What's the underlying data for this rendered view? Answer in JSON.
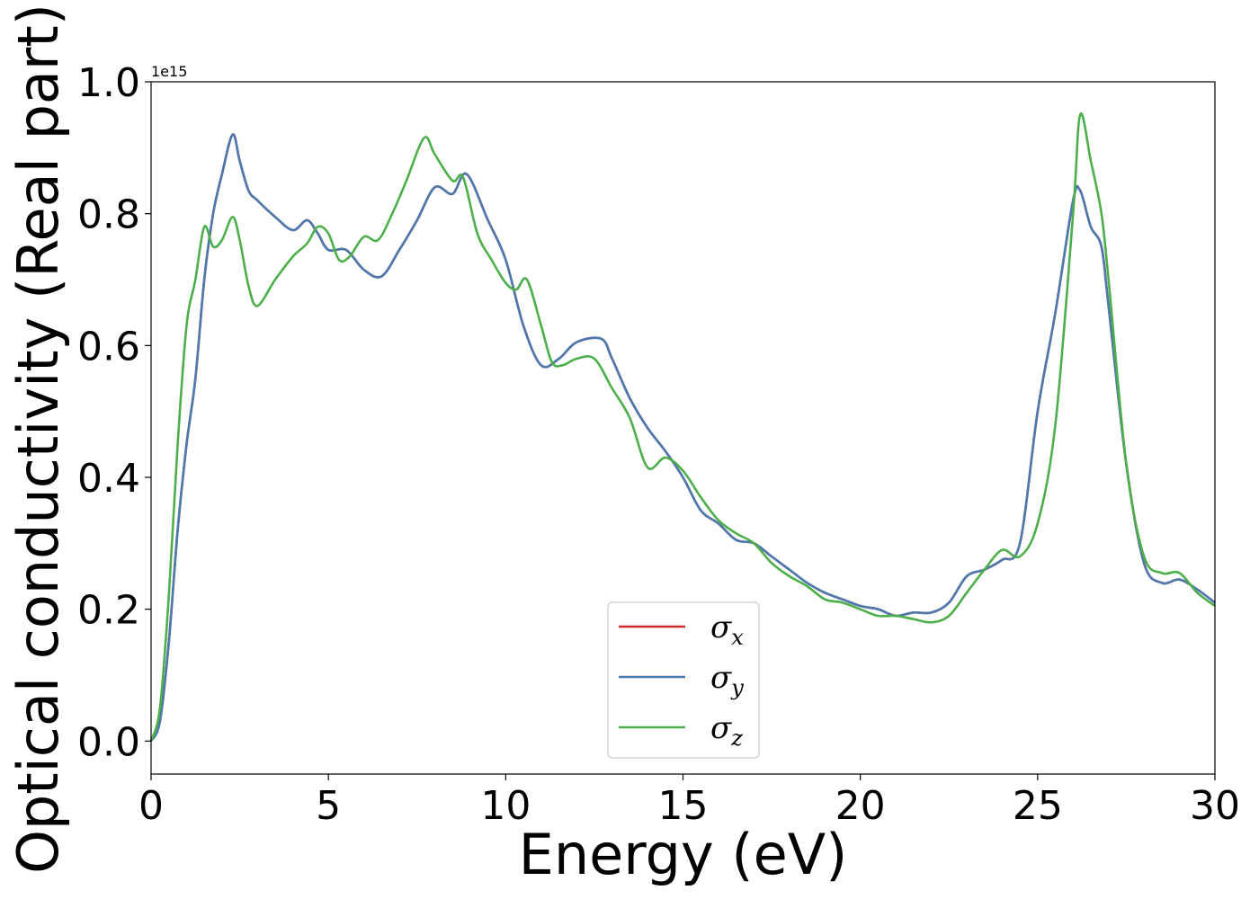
{
  "chart_data": {
    "type": "line",
    "xlabel": "Energy (eV)",
    "ylabel": "Optical conductivity (Real part)",
    "y_offset_text": "1e15",
    "xlim": [
      0,
      30
    ],
    "ylim": [
      -0.05,
      1.0
    ],
    "x_ticks": [
      0,
      5,
      10,
      15,
      20,
      25,
      30
    ],
    "x_tick_labels": [
      "0",
      "5",
      "10",
      "15",
      "20",
      "25",
      "30"
    ],
    "y_ticks": [
      0.0,
      0.2,
      0.4,
      0.6,
      0.8,
      1.0
    ],
    "y_tick_labels": [
      "0.0",
      "0.2",
      "0.4",
      "0.6",
      "0.8",
      "1.0"
    ],
    "grid": false,
    "legend_position": "lower center",
    "colors": {
      "sigma_x": "#d62728",
      "sigma_y": "#4a7ab0",
      "sigma_z": "#4daf4a"
    },
    "series": [
      {
        "name": "σx",
        "symbol": "σ",
        "subscript": "x",
        "color": "#d62728",
        "x": [
          0,
          0.25,
          0.5,
          0.75,
          1.0,
          1.25,
          1.5,
          1.75,
          2.0,
          2.3,
          2.5,
          2.75,
          3.0,
          3.5,
          4.0,
          4.4,
          4.7,
          5.0,
          5.5,
          6.0,
          6.5,
          7.0,
          7.5,
          8.0,
          8.5,
          8.9,
          9.5,
          10.0,
          10.5,
          11.0,
          11.5,
          12.0,
          12.7,
          13.0,
          13.5,
          14.0,
          14.5,
          15.0,
          15.5,
          16.0,
          16.5,
          17.0,
          17.5,
          18.0,
          18.5,
          19.0,
          19.5,
          20.0,
          20.5,
          21.0,
          21.5,
          22.0,
          22.5,
          23.0,
          23.5,
          24.0,
          24.5,
          25.0,
          25.5,
          26.0,
          26.2,
          26.5,
          26.8,
          27.0,
          27.5,
          28.0,
          28.5,
          29.0,
          29.5,
          30.0
        ],
        "values": [
          0.0,
          0.03,
          0.15,
          0.32,
          0.45,
          0.55,
          0.7,
          0.8,
          0.86,
          0.92,
          0.88,
          0.835,
          0.82,
          0.795,
          0.775,
          0.79,
          0.77,
          0.745,
          0.745,
          0.715,
          0.705,
          0.745,
          0.79,
          0.84,
          0.83,
          0.86,
          0.79,
          0.73,
          0.63,
          0.57,
          0.58,
          0.605,
          0.61,
          0.58,
          0.52,
          0.475,
          0.44,
          0.4,
          0.35,
          0.33,
          0.305,
          0.3,
          0.28,
          0.26,
          0.24,
          0.225,
          0.215,
          0.205,
          0.2,
          0.19,
          0.195,
          0.195,
          0.21,
          0.25,
          0.26,
          0.275,
          0.3,
          0.5,
          0.65,
          0.82,
          0.835,
          0.78,
          0.75,
          0.66,
          0.42,
          0.27,
          0.24,
          0.245,
          0.23,
          0.21
        ]
      },
      {
        "name": "σy",
        "symbol": "σ",
        "subscript": "y",
        "color": "#4a7ab0",
        "x": [
          0,
          0.25,
          0.5,
          0.75,
          1.0,
          1.25,
          1.5,
          1.75,
          2.0,
          2.3,
          2.5,
          2.75,
          3.0,
          3.5,
          4.0,
          4.4,
          4.7,
          5.0,
          5.5,
          6.0,
          6.5,
          7.0,
          7.5,
          8.0,
          8.5,
          8.9,
          9.5,
          10.0,
          10.5,
          11.0,
          11.5,
          12.0,
          12.7,
          13.0,
          13.5,
          14.0,
          14.5,
          15.0,
          15.5,
          16.0,
          16.5,
          17.0,
          17.5,
          18.0,
          18.5,
          19.0,
          19.5,
          20.0,
          20.5,
          21.0,
          21.5,
          22.0,
          22.5,
          23.0,
          23.5,
          24.0,
          24.5,
          25.0,
          25.5,
          26.0,
          26.2,
          26.5,
          26.8,
          27.0,
          27.5,
          28.0,
          28.5,
          29.0,
          29.5,
          30.0
        ],
        "values": [
          0.0,
          0.03,
          0.15,
          0.32,
          0.45,
          0.55,
          0.7,
          0.8,
          0.86,
          0.92,
          0.88,
          0.835,
          0.82,
          0.795,
          0.775,
          0.79,
          0.77,
          0.745,
          0.745,
          0.715,
          0.705,
          0.745,
          0.79,
          0.84,
          0.83,
          0.86,
          0.79,
          0.73,
          0.63,
          0.57,
          0.58,
          0.605,
          0.61,
          0.58,
          0.52,
          0.475,
          0.44,
          0.4,
          0.35,
          0.33,
          0.305,
          0.3,
          0.28,
          0.26,
          0.24,
          0.225,
          0.215,
          0.205,
          0.2,
          0.19,
          0.195,
          0.195,
          0.21,
          0.25,
          0.26,
          0.275,
          0.3,
          0.5,
          0.65,
          0.82,
          0.835,
          0.78,
          0.75,
          0.66,
          0.42,
          0.27,
          0.24,
          0.245,
          0.23,
          0.21
        ]
      },
      {
        "name": "σz",
        "symbol": "σ",
        "subscript": "z",
        "color": "#4daf4a",
        "x": [
          0,
          0.25,
          0.5,
          0.75,
          1.0,
          1.25,
          1.5,
          1.75,
          2.0,
          2.3,
          2.5,
          2.75,
          3.0,
          3.5,
          4.0,
          4.4,
          4.7,
          5.0,
          5.3,
          5.6,
          6.0,
          6.4,
          6.8,
          7.2,
          7.7,
          8.0,
          8.5,
          8.8,
          9.2,
          9.6,
          10.0,
          10.3,
          10.6,
          11.0,
          11.3,
          11.6,
          12.0,
          12.5,
          13.0,
          13.5,
          14.0,
          14.5,
          15.0,
          15.5,
          16.0,
          16.5,
          17.0,
          17.5,
          18.0,
          18.5,
          19.0,
          19.5,
          20.0,
          20.5,
          21.0,
          21.5,
          22.0,
          22.5,
          23.0,
          23.5,
          24.0,
          24.5,
          25.0,
          25.5,
          26.0,
          26.2,
          26.5,
          26.8,
          27.0,
          27.5,
          28.0,
          28.5,
          29.0,
          29.5,
          30.0
        ],
        "values": [
          0.0,
          0.05,
          0.22,
          0.45,
          0.63,
          0.7,
          0.78,
          0.75,
          0.76,
          0.795,
          0.76,
          0.69,
          0.66,
          0.7,
          0.735,
          0.755,
          0.78,
          0.77,
          0.73,
          0.735,
          0.765,
          0.76,
          0.8,
          0.85,
          0.915,
          0.89,
          0.85,
          0.855,
          0.77,
          0.73,
          0.695,
          0.685,
          0.7,
          0.63,
          0.575,
          0.57,
          0.58,
          0.58,
          0.535,
          0.49,
          0.415,
          0.43,
          0.41,
          0.37,
          0.335,
          0.315,
          0.3,
          0.27,
          0.25,
          0.235,
          0.215,
          0.21,
          0.2,
          0.19,
          0.19,
          0.185,
          0.18,
          0.19,
          0.225,
          0.26,
          0.29,
          0.28,
          0.33,
          0.48,
          0.8,
          0.95,
          0.88,
          0.8,
          0.7,
          0.42,
          0.28,
          0.255,
          0.255,
          0.225,
          0.205
        ]
      }
    ]
  }
}
